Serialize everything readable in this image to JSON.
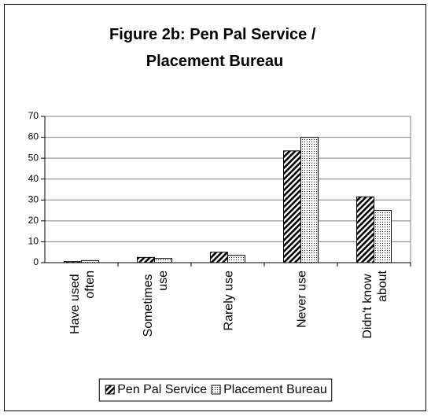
{
  "chart_data": {
    "type": "bar",
    "title": "Figure 2b: Pen Pal Service / Placement Bureau",
    "categories": [
      "Have used often",
      "Sometimes use",
      "Rarely use",
      "Never use",
      "Didn't know about"
    ],
    "series": [
      {
        "name": "Pen Pal Service",
        "color": "#000000",
        "pattern": "hatch",
        "values": [
          0.5,
          2.5,
          5,
          53.5,
          31.5
        ]
      },
      {
        "name": "Placement Bureau",
        "color": "#000000",
        "pattern": "dots",
        "values": [
          1,
          2,
          3.5,
          60,
          25
        ]
      }
    ],
    "ylim": [
      0,
      70
    ],
    "yticks": [
      0,
      10,
      20,
      30,
      40,
      50,
      60,
      70
    ],
    "grid": true,
    "legend": "bottom"
  }
}
